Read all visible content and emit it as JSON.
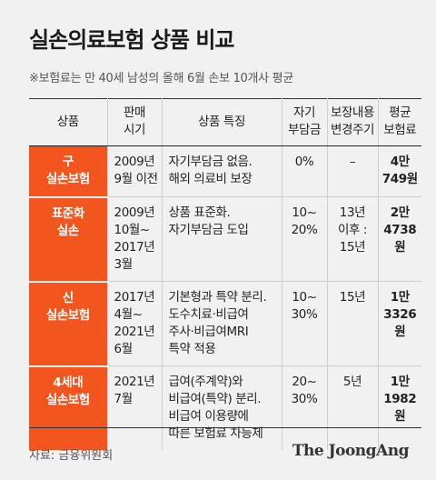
{
  "title": "실손의료보험 상품 비교",
  "note": "※보험료는 만 40세 남성의 올해 6월 손보 10개사 평균",
  "headers": [
    "상품",
    "판매\n시기",
    "상품 특징",
    "자기\n부담금",
    "보장내용\n변경주기",
    "평균\n보험료"
  ],
  "rows": [
    {
      "product": "구\n실손보험",
      "period": "2009년\n9월 이전",
      "features": "자기부담금 없음.\n해외 의료비 보장",
      "copay": "0%",
      "cycle": "–",
      "premium": "4만\n749원"
    },
    {
      "product": "표준화\n실손",
      "period": "2009년\n10월~\n2017년\n3월",
      "features": "상품 표준화.\n자기부담금 도입",
      "copay": "10~\n20%",
      "cycle": "13년\n이후 :\n15년",
      "premium": "2만\n4738원"
    },
    {
      "product": "신\n실손보험",
      "period": "2017년\n4월~\n2021년\n6월",
      "features": "기본형과 특약 분리.\n도수치료·비급여\n주사·비급여MRI\n특약 적용",
      "copay": "10~\n30%",
      "cycle": "15년",
      "premium": "1만\n3326원"
    },
    {
      "product": "4세대\n실손보험",
      "period": "2021년\n7월",
      "features": "급여(주계약)와\n비급여(특약) 분리.\n비급여 이용량에\n따른 보험료 차등제",
      "copay": "20~\n30%",
      "cycle": "5년",
      "premium": "1만\n1982원"
    }
  ],
  "source": "자료: 금융위원회",
  "logo": "The JoongAng",
  "colors": {
    "accent": "#f2551e",
    "background": "#f1f1f1"
  }
}
